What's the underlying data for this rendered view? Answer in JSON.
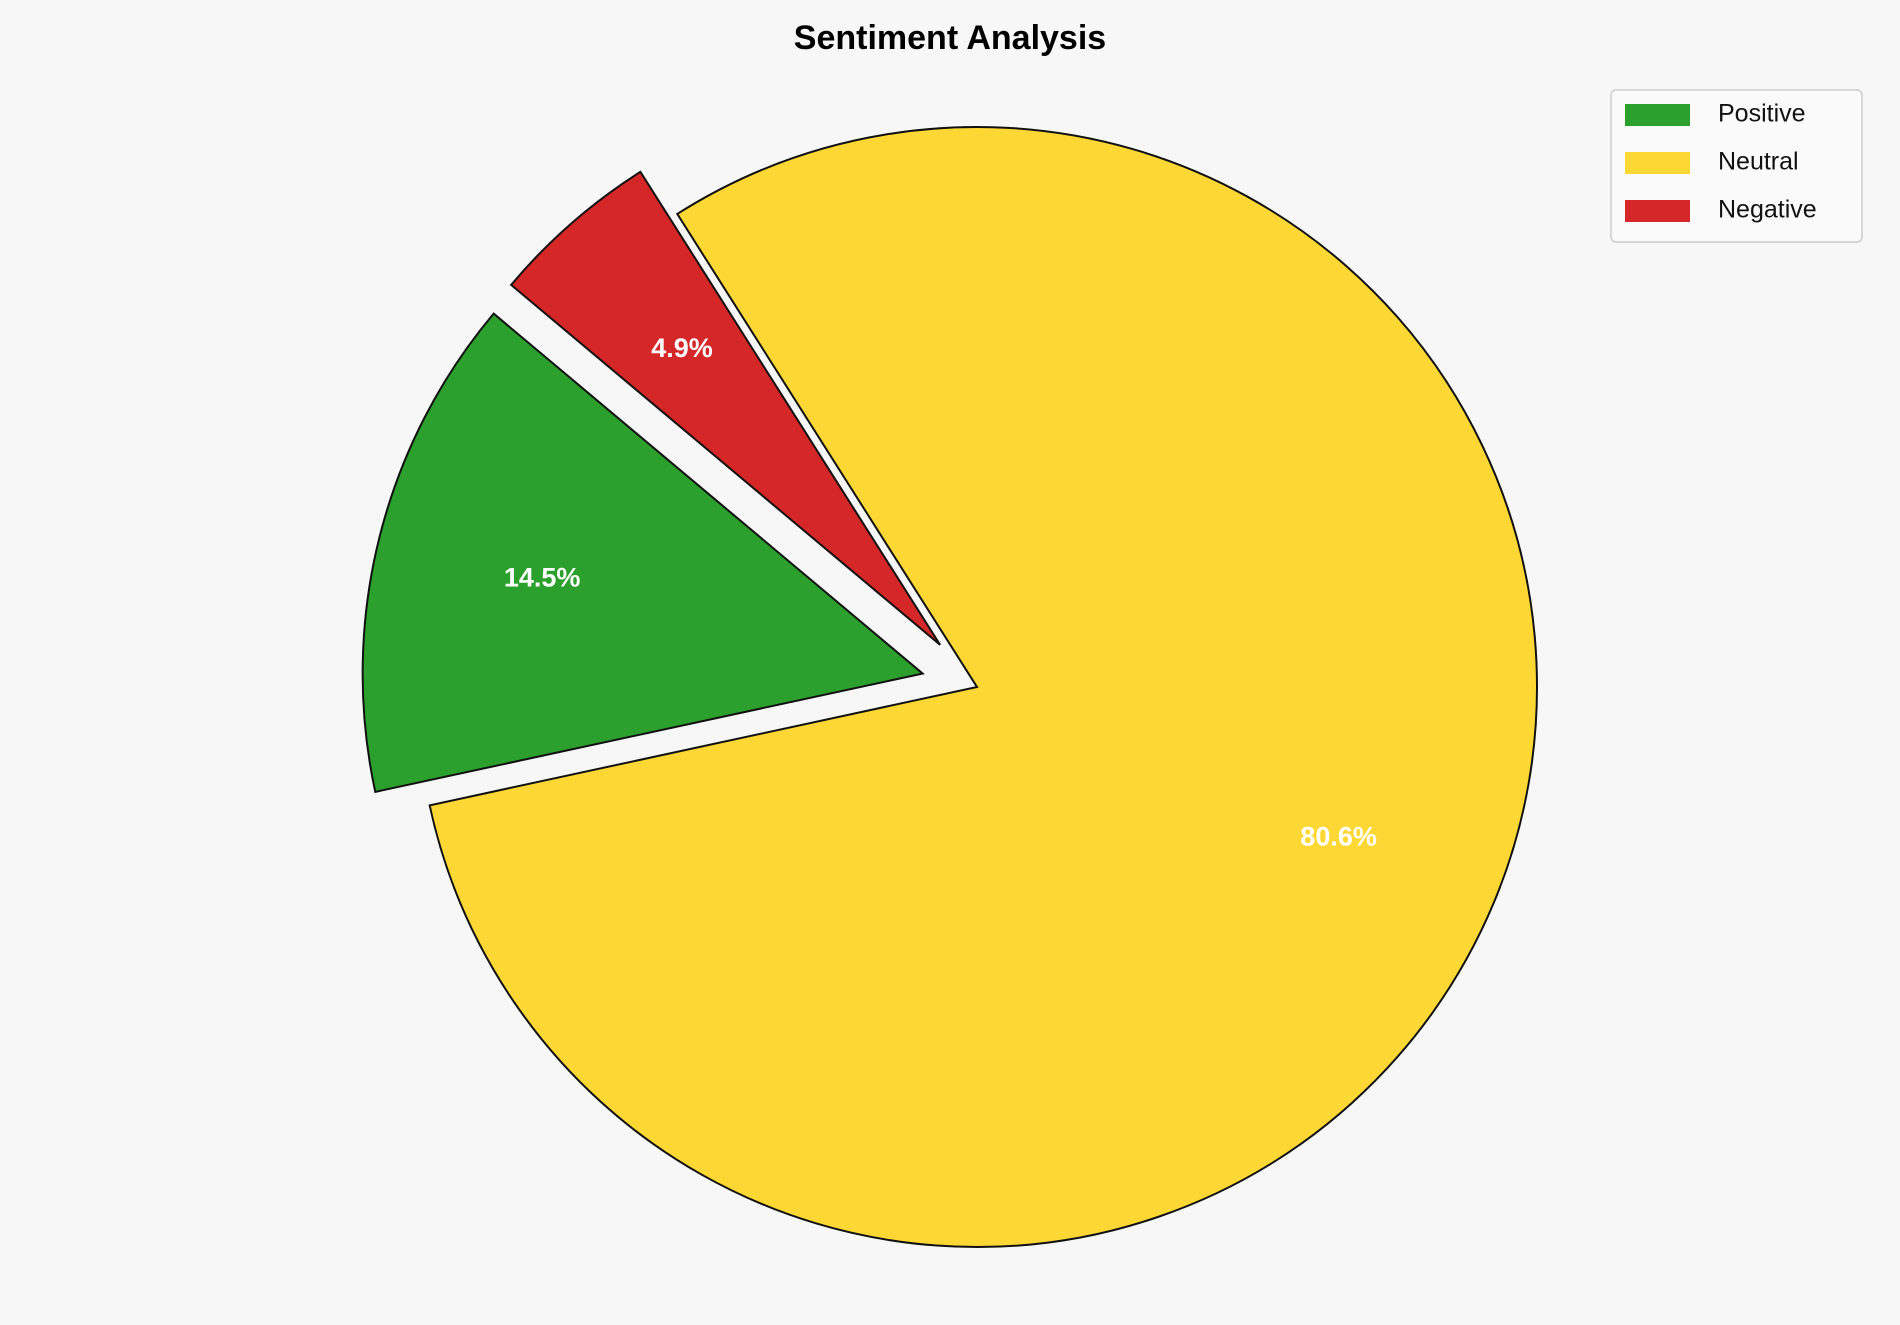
{
  "chart_data": {
    "type": "pie",
    "title": "Sentiment Analysis",
    "categories": [
      "Positive",
      "Neutral",
      "Negative"
    ],
    "values": [
      14.5,
      80.6,
      4.9
    ],
    "value_labels": [
      "14.5%",
      "80.6%",
      "4.9%"
    ],
    "colors": [
      "#2ca02c",
      "#fdd835",
      "#d62728"
    ],
    "legend": "upper right"
  }
}
